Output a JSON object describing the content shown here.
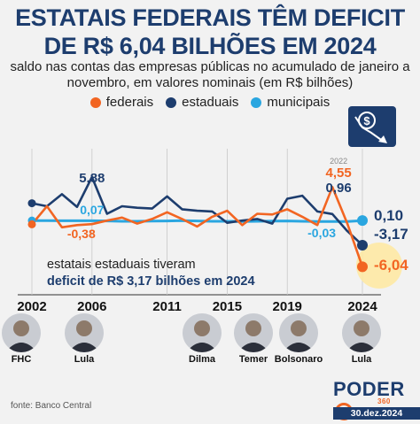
{
  "title": {
    "line1": "ESTATAIS FEDERAIS TÊM DEFICIT",
    "line2": "DE R$ 6,04 BILHÕES EM 2024"
  },
  "subtitle": {
    "line1": "saldo nas contas das empresas públicas no acumulado de janeiro a",
    "line2": "novembro, em valores nominais (em R$ bilhões)"
  },
  "colors": {
    "federais": "#f26522",
    "estaduais": "#1d3d6e",
    "municipais": "#2aa6e0",
    "title": "#1d3d6e"
  },
  "badge_icon": "falling-money-icon",
  "annotation": {
    "line1": "estatais estaduais tiveram",
    "line2": "deficit de R$ 3,17 bilhões em 2024"
  },
  "chart_data": {
    "type": "line",
    "title": "",
    "xlabel": "",
    "ylabel": "",
    "x": [
      2002,
      2003,
      2004,
      2005,
      2006,
      2007,
      2008,
      2009,
      2010,
      2011,
      2012,
      2013,
      2014,
      2015,
      2016,
      2017,
      2018,
      2019,
      2020,
      2021,
      2022,
      2023,
      2024
    ],
    "x_tick_labels": [
      "2002",
      "2006",
      "2011",
      "2015",
      "2019",
      "2024"
    ],
    "ylim": [
      -8,
      7
    ],
    "series": [
      {
        "name": "federais",
        "color": "#f26522",
        "values": [
          -0.4,
          2.0,
          -0.8,
          -0.5,
          -0.38,
          0.1,
          0.5,
          -0.3,
          0.3,
          1.2,
          0.3,
          -0.7,
          0.6,
          1.4,
          -0.5,
          1.0,
          0.9,
          1.6,
          0.6,
          -0.5,
          4.55,
          -0.3,
          -6.04
        ]
      },
      {
        "name": "estaduais",
        "color": "#1d3d6e",
        "values": [
          2.4,
          2.0,
          3.6,
          1.9,
          5.88,
          1.0,
          2.0,
          1.8,
          1.7,
          3.3,
          1.6,
          1.4,
          1.3,
          -0.2,
          0.1,
          0.3,
          -0.3,
          3.0,
          3.4,
          1.3,
          0.96,
          -1.3,
          -3.17
        ]
      },
      {
        "name": "municipais",
        "color": "#2aa6e0",
        "values": [
          0.1,
          0.1,
          0.07,
          0.07,
          0.07,
          0.05,
          0.0,
          0.0,
          0.02,
          0.05,
          0.1,
          0.05,
          0.0,
          0.0,
          -0.03,
          0.0,
          0.03,
          0.05,
          0.0,
          -0.02,
          -0.03,
          -0.03,
          0.1
        ]
      }
    ],
    "data_labels": [
      {
        "id": "est-2006",
        "series": "estaduais",
        "x": 2006,
        "text": "5,88"
      },
      {
        "id": "fed-2006",
        "series": "federais",
        "x": 2006,
        "text": "-0,38"
      },
      {
        "id": "mun-2006",
        "series": "municipais",
        "x": 2006,
        "text": "0,07"
      },
      {
        "id": "year-2022",
        "series": "",
        "x": 2022,
        "text": "2022"
      },
      {
        "id": "fed-2022",
        "series": "federais",
        "x": 2022,
        "text": "4,55"
      },
      {
        "id": "est-2022",
        "series": "estaduais",
        "x": 2022,
        "text": "0,96"
      },
      {
        "id": "mun-2022",
        "series": "municipais",
        "x": 2022,
        "text": "-0,03"
      },
      {
        "id": "mun-2024",
        "series": "municipais",
        "x": 2024,
        "text": "0,10"
      },
      {
        "id": "est-2024",
        "series": "estaduais",
        "x": 2024,
        "text": "-3,17"
      },
      {
        "id": "fed-2024",
        "series": "federais",
        "x": 2024,
        "text": "-6,04"
      }
    ]
  },
  "presidents": [
    {
      "name": "FHC",
      "year": 2002
    },
    {
      "name": "Lula",
      "year": 2006
    },
    {
      "name": "Dilma",
      "year": 2011
    },
    {
      "name": "Temer",
      "year": 2016
    },
    {
      "name": "Bolsonaro",
      "year": 2019
    },
    {
      "name": "Lula",
      "year": 2024
    }
  ],
  "source": "fonte: Banco Central",
  "logo": {
    "text": "PODER",
    "sub": "360"
  },
  "date": "30.dez.2024"
}
